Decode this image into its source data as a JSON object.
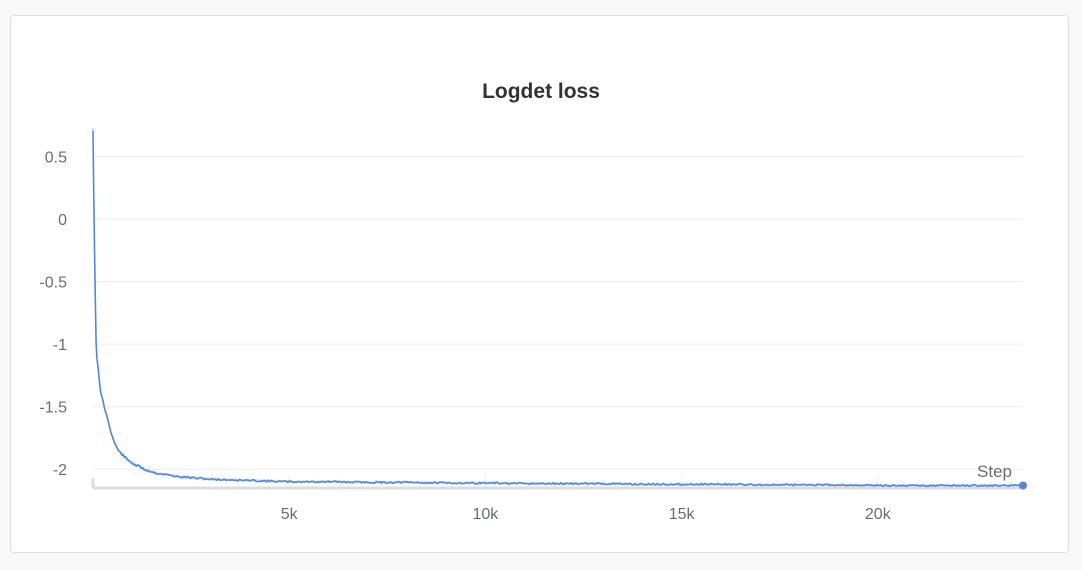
{
  "chart_data": {
    "type": "line",
    "title": "Logdet loss",
    "xlabel": "Step",
    "ylabel": "",
    "xlim": [
      0,
      23700
    ],
    "ylim": [
      -2.15,
      0.72
    ],
    "x_ticks": [
      5000,
      10000,
      15000,
      20000
    ],
    "x_tick_labels": [
      "5k",
      "10k",
      "15k",
      "20k"
    ],
    "y_ticks": [
      0.5,
      0,
      -0.5,
      -1,
      -1.5,
      -2
    ],
    "y_tick_labels": [
      "0.5",
      "0",
      "-0.5",
      "-1",
      "-1.5",
      "-2"
    ],
    "grid": true,
    "legend": "none",
    "colors": {
      "line": "#5387d6",
      "band": "#c9daf3",
      "grid": "#ececec",
      "axis": "#dddddd"
    },
    "series": [
      {
        "x": [
          0,
          20,
          40,
          60,
          80,
          100,
          130,
          160,
          200,
          250,
          300,
          350,
          400,
          450,
          500,
          550,
          600,
          650,
          700,
          800,
          900,
          1000,
          1100,
          1200,
          1300,
          1400,
          1500,
          1600,
          1800,
          2000,
          2200,
          2400,
          2600,
          2800,
          3000,
          3500,
          4000,
          4500,
          5000,
          6000,
          7000,
          8000,
          9000,
          10000,
          11000,
          12000,
          13000,
          14000,
          15000,
          16000,
          17000,
          18000,
          19000,
          20000,
          21000,
          22000,
          23000,
          23700
        ],
        "y": [
          0.72,
          0.2,
          -0.3,
          -0.7,
          -1.0,
          -1.1,
          -1.2,
          -1.3,
          -1.38,
          -1.45,
          -1.52,
          -1.56,
          -1.62,
          -1.7,
          -1.75,
          -1.79,
          -1.82,
          -1.85,
          -1.87,
          -1.9,
          -1.93,
          -1.95,
          -1.97,
          -1.98,
          -2.0,
          -2.01,
          -2.02,
          -2.03,
          -2.04,
          -2.05,
          -2.06,
          -2.065,
          -2.07,
          -2.075,
          -2.08,
          -2.085,
          -2.09,
          -2.095,
          -2.1,
          -2.1,
          -2.105,
          -2.105,
          -2.11,
          -2.11,
          -2.115,
          -2.115,
          -2.115,
          -2.12,
          -2.12,
          -2.12,
          -2.125,
          -2.125,
          -2.125,
          -2.13,
          -2.13,
          -2.13,
          -2.13,
          -2.13
        ]
      }
    ]
  }
}
